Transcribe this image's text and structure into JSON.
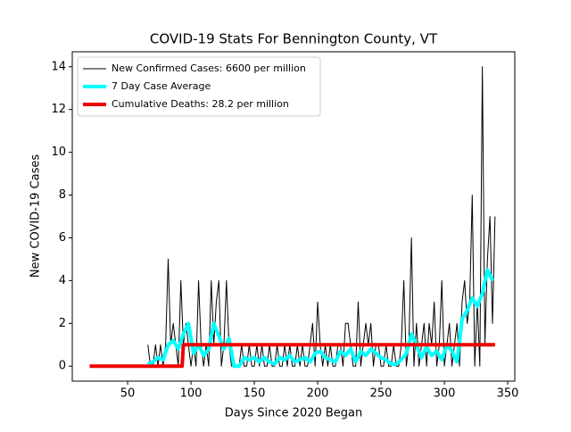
{
  "chart_data": {
    "type": "line",
    "title": "COVID-19 Stats For Bennington County, VT",
    "x_label": "Days Since 2020 Began",
    "y_label": "New COVID-19 Cases",
    "xlim": [
      6.3,
      355.6
    ],
    "ylim": [
      -0.7,
      14.7
    ],
    "xticks": [
      50,
      100,
      150,
      200,
      250,
      300,
      350
    ],
    "yticks": [
      0,
      2,
      4,
      6,
      8,
      10,
      12,
      14
    ],
    "legend": "upper left",
    "series": [
      {
        "name": "New Confirmed Cases: 6600 per million",
        "color": "#000000",
        "linewidth": 1,
        "x": [
          66,
          68,
          70,
          72,
          74,
          76,
          78,
          80,
          82,
          84,
          86,
          88,
          90,
          92,
          94,
          96,
          98,
          100,
          102,
          104,
          106,
          108,
          110,
          112,
          114,
          116,
          118,
          120,
          122,
          124,
          126,
          128,
          130,
          132,
          134,
          136,
          138,
          140,
          142,
          144,
          146,
          148,
          150,
          152,
          154,
          156,
          158,
          160,
          162,
          164,
          166,
          168,
          170,
          172,
          174,
          176,
          178,
          180,
          182,
          184,
          186,
          188,
          190,
          192,
          194,
          196,
          198,
          200,
          202,
          204,
          206,
          208,
          210,
          212,
          214,
          216,
          218,
          220,
          222,
          224,
          226,
          228,
          230,
          232,
          234,
          236,
          238,
          240,
          242,
          244,
          246,
          248,
          250,
          252,
          254,
          256,
          258,
          260,
          262,
          264,
          266,
          268,
          270,
          272,
          274,
          276,
          278,
          280,
          282,
          284,
          286,
          288,
          290,
          292,
          294,
          296,
          298,
          300,
          302,
          304,
          306,
          308,
          310,
          312,
          314,
          316,
          318,
          320,
          322,
          324,
          326,
          328,
          330,
          332,
          334,
          336,
          338,
          340
        ],
        "values": [
          1,
          0,
          0,
          1,
          0,
          1,
          0,
          1,
          5,
          1,
          2,
          1,
          0,
          4,
          1,
          2,
          1,
          0,
          1,
          0,
          4,
          1,
          0,
          1,
          0,
          4,
          1,
          3,
          4,
          0,
          1,
          4,
          1,
          0,
          0,
          0,
          0,
          1,
          0,
          0,
          1,
          0,
          0,
          1,
          0,
          1,
          0,
          0,
          1,
          0,
          0,
          1,
          0,
          0,
          1,
          0,
          1,
          0,
          0,
          1,
          0,
          1,
          0,
          0,
          1,
          2,
          0,
          3,
          1,
          0,
          1,
          0,
          1,
          0,
          0,
          1,
          1,
          0,
          2,
          2,
          1,
          0,
          0,
          3,
          0,
          1,
          2,
          1,
          2,
          0,
          1,
          1,
          0,
          0,
          1,
          0,
          0,
          1,
          0,
          0,
          1,
          4,
          0,
          1,
          6,
          0,
          2,
          0,
          1,
          2,
          0,
          2,
          1,
          3,
          0,
          1,
          4,
          0,
          1,
          2,
          0,
          1,
          2,
          0,
          3,
          4,
          2,
          3,
          8,
          0,
          3,
          0,
          14,
          1,
          5,
          7,
          2,
          7
        ]
      },
      {
        "name": "7 Day Case Average",
        "color": "#00ffff",
        "linewidth": 4,
        "x": [
          66,
          70,
          74,
          78,
          82,
          86,
          90,
          94,
          98,
          102,
          106,
          110,
          114,
          118,
          122,
          126,
          130,
          134,
          138,
          142,
          146,
          150,
          154,
          158,
          162,
          166,
          170,
          174,
          178,
          182,
          186,
          190,
          194,
          198,
          202,
          206,
          210,
          214,
          218,
          222,
          226,
          230,
          234,
          238,
          242,
          246,
          250,
          254,
          258,
          262,
          266,
          270,
          274,
          278,
          282,
          286,
          290,
          294,
          298,
          302,
          306,
          310,
          314,
          318,
          322,
          326,
          330,
          334,
          338
        ],
        "values": [
          0.1,
          0.2,
          0.4,
          0.3,
          1,
          1.2,
          0.8,
          1.5,
          2,
          0.6,
          1,
          0.5,
          0.8,
          2,
          1.4,
          0.8,
          1.3,
          0,
          0,
          0.4,
          0.3,
          0.4,
          0.2,
          0.4,
          0.2,
          0.1,
          0.4,
          0.3,
          0.5,
          0.2,
          0.3,
          0.4,
          0.2,
          0.6,
          0.7,
          0.4,
          0.3,
          0.2,
          0.7,
          0.5,
          0.8,
          0.2,
          0.7,
          0.5,
          0.8,
          0.6,
          0.4,
          0.3,
          0.1,
          0.1,
          0.3,
          0.6,
          1.5,
          1,
          0.4,
          0.9,
          0.5,
          0.7,
          0.3,
          1,
          0.7,
          0.2,
          2.2,
          2.6,
          3.2,
          2.8,
          3.4,
          4.5,
          4
        ]
      },
      {
        "name": "Cumulative Deaths: 28.2 per million",
        "color": "#ee0000",
        "linewidth": 4,
        "x": [
          20,
          93,
          94,
          340
        ],
        "values": [
          0,
          0,
          1,
          1
        ]
      }
    ]
  }
}
